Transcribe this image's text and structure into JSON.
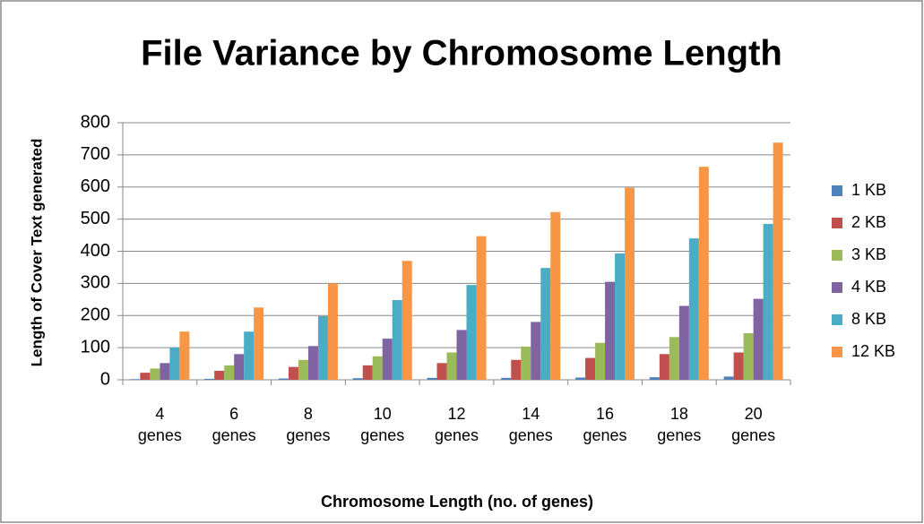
{
  "chart_data": {
    "type": "bar",
    "title": "File Variance by Chromosome Length",
    "xlabel": "Chromosome Length (no. of genes)",
    "ylabel": "Length of Cover Text generated",
    "categories": [
      "4 genes",
      "6 genes",
      "8 genes",
      "10 genes",
      "12 genes",
      "14 genes",
      "16 genes",
      "18 genes",
      "20 genes"
    ],
    "series": [
      {
        "name": "1 KB",
        "color": "#4f81bd",
        "values": [
          2,
          3,
          4,
          5,
          6,
          6,
          7,
          8,
          10
        ]
      },
      {
        "name": "2 KB",
        "color": "#c0504d",
        "values": [
          22,
          28,
          40,
          45,
          52,
          62,
          68,
          80,
          85
        ]
      },
      {
        "name": "3 KB",
        "color": "#9bbb59",
        "values": [
          35,
          45,
          62,
          73,
          85,
          103,
          115,
          133,
          145
        ]
      },
      {
        "name": "4 KB",
        "color": "#8064a2",
        "values": [
          52,
          80,
          105,
          128,
          155,
          180,
          305,
          230,
          252
        ]
      },
      {
        "name": "8 KB",
        "color": "#4bacc6",
        "values": [
          100,
          150,
          198,
          248,
          295,
          348,
          393,
          440,
          485
        ]
      },
      {
        "name": "12 KB",
        "color": "#f79646",
        "values": [
          150,
          225,
          300,
          370,
          447,
          522,
          598,
          663,
          738
        ]
      }
    ],
    "ylim": [
      0,
      800
    ],
    "yticks": [
      0,
      100,
      200,
      300,
      400,
      500,
      600,
      700,
      800
    ],
    "grid": true,
    "legend": "right"
  }
}
